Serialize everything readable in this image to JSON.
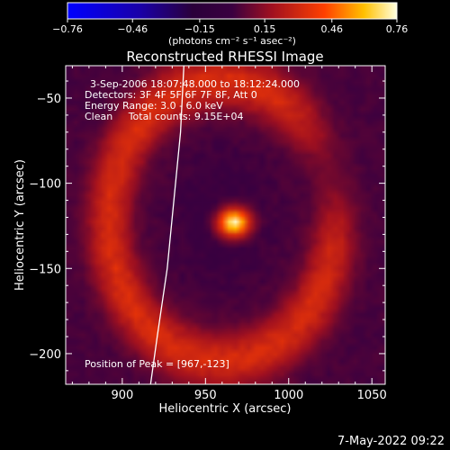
{
  "chart_data": {
    "type": "heatmap",
    "title": "Reconstructed RHESSI Image",
    "xlabel": "Heliocentric X (arcsec)",
    "ylabel": "Heliocentric Y (arcsec)",
    "xlim": [
      866,
      1058
    ],
    "ylim": [
      -218,
      -31
    ],
    "x_ticks": [
      900,
      950,
      1000,
      1050
    ],
    "y_ticks": [
      -200,
      -150,
      -100,
      -50
    ],
    "colorbar": {
      "min": -0.76,
      "max": 0.76,
      "ticks": [
        -0.76,
        -0.46,
        -0.15,
        0.15,
        0.46,
        0.76
      ],
      "tick_labels": [
        "−0.76",
        "−0.46",
        "−0.15",
        "0.15",
        "0.46",
        "0.76"
      ],
      "unit_label": "(photons cm⁻² s⁻¹ asec⁻²)"
    },
    "annotations": [
      "3-Sep-2006 18:07:48.000 to 18:12:24.000",
      "Detectors: 3F 4F 5F 6F 7F 8F, Att 0",
      "Energy Range: 3.0 - 6.0 keV",
      "Clean     Total counts: 9.15E+04"
    ],
    "peak_label": "Position of Peak = [967,-123]",
    "peak": [
      967,
      -123
    ],
    "limb_curve": [
      [
        937,
        -31
      ],
      [
        935,
        -70
      ],
      [
        931,
        -110
      ],
      [
        927,
        -150
      ],
      [
        921,
        -190
      ],
      [
        917,
        -218
      ]
    ],
    "image_model": {
      "center": [
        960,
        -122
      ],
      "background": 0.02,
      "ring": {
        "radius_x": 68,
        "radius_y": 82,
        "width": 14,
        "peak": 0.3,
        "gap_angle_deg": 20
      },
      "core": {
        "center": [
          967,
          -123
        ],
        "sigma_x": 6.5,
        "sigma_y": 5.5,
        "peak": 0.76
      },
      "dark_zone": {
        "radius_x": 40,
        "radius_y": 52,
        "value": -0.04
      }
    }
  },
  "footer": {
    "date": "7-May-2022 09:22"
  }
}
